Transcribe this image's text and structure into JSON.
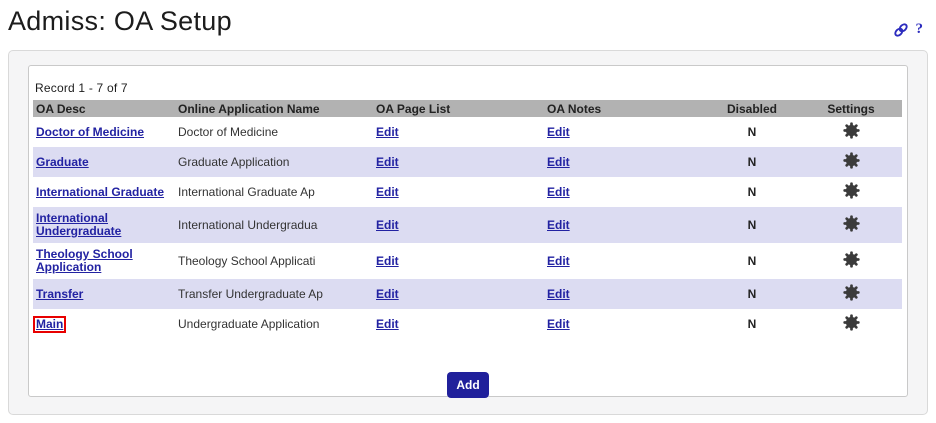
{
  "page": {
    "title": "Admiss: OA Setup",
    "help_glyph": "?"
  },
  "icons": {
    "permalink": "link-icon",
    "help": "question-mark-icon",
    "settings": "gear-icon"
  },
  "table": {
    "record_summary": "Record 1 - 7 of 7",
    "columns": [
      "OA Desc",
      "Online Application Name",
      "OA Page List",
      "OA Notes",
      "Disabled",
      "Settings"
    ],
    "rows": [
      {
        "oa_desc": "Doctor of Medicine",
        "online_application_name": "Doctor of Medicine",
        "oa_page_list": "Edit",
        "oa_notes": "Edit",
        "disabled": "N",
        "highlighted": false
      },
      {
        "oa_desc": "Graduate",
        "online_application_name": "Graduate Application",
        "oa_page_list": "Edit",
        "oa_notes": "Edit",
        "disabled": "N",
        "highlighted": false
      },
      {
        "oa_desc": "International Graduate",
        "online_application_name": "International Graduate Ap",
        "oa_page_list": "Edit",
        "oa_notes": "Edit",
        "disabled": "N",
        "highlighted": false
      },
      {
        "oa_desc": "International Undergraduate",
        "online_application_name": "International Undergradua",
        "oa_page_list": "Edit",
        "oa_notes": "Edit",
        "disabled": "N",
        "highlighted": false
      },
      {
        "oa_desc": "Theology School Application",
        "online_application_name": "Theology School Applicati",
        "oa_page_list": "Edit",
        "oa_notes": "Edit",
        "disabled": "N",
        "highlighted": false
      },
      {
        "oa_desc": "Transfer",
        "online_application_name": "Transfer Undergraduate Ap",
        "oa_page_list": "Edit",
        "oa_notes": "Edit",
        "disabled": "N",
        "highlighted": false
      },
      {
        "oa_desc": "Main",
        "online_application_name": "Undergraduate Application",
        "oa_page_list": "Edit",
        "oa_notes": "Edit",
        "disabled": "N",
        "highlighted": true
      }
    ]
  },
  "add_button": {
    "label": "Add"
  },
  "colors": {
    "link": "#2222a2",
    "header_bg": "#b2b2b2",
    "row_alt_bg": "#dcdcf2",
    "accent_navy": "#20209b",
    "gear": "#3b3b3b",
    "highlight_red": "#e80000",
    "icon_blue": "#2c2cbe",
    "card_bg": "#f5f5f6"
  }
}
